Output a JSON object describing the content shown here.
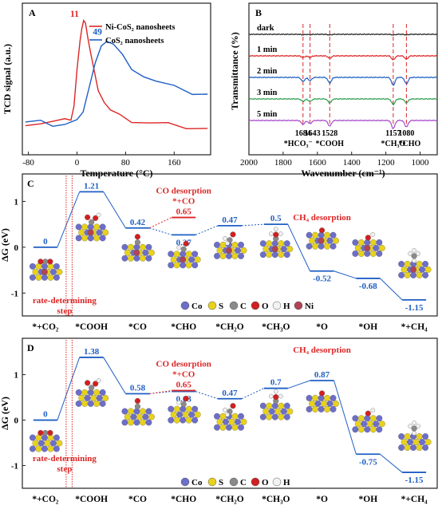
{
  "colors": {
    "red": "#dc2626",
    "blue": "#1f5fc4",
    "black": "#222222",
    "green": "#2e9e4f",
    "purple": "#a64ac9",
    "grey": "#7f7f7f",
    "co": "#6d6ec9",
    "s": "#e8d21a",
    "c": "#8a8a8a",
    "o": "#d21f1f",
    "h": "#f2f2f2",
    "ni": "#b04455"
  },
  "chart_data": [
    {
      "panel": "A",
      "type": "line",
      "ylabel": "TCD signal (a.u.)",
      "xlabel": "Temperature (°C)",
      "xlim": [
        -90,
        220
      ],
      "xticks": [
        -80,
        0,
        80,
        160
      ],
      "ylim": [
        0,
        1
      ],
      "series": [
        {
          "name": "Ni-CoS₂ nanosheets",
          "color": "red",
          "peak_label": "11",
          "x": [
            -85,
            -60,
            -40,
            -20,
            -10,
            -5,
            0,
            5,
            8,
            11,
            14,
            18,
            22,
            28,
            35,
            45,
            55,
            70,
            90,
            120,
            150,
            180,
            215
          ],
          "y": [
            0.21,
            0.21,
            0.215,
            0.22,
            0.24,
            0.32,
            0.55,
            0.77,
            0.84,
            0.88,
            0.85,
            0.78,
            0.68,
            0.55,
            0.44,
            0.35,
            0.29,
            0.25,
            0.225,
            0.21,
            0.2,
            0.19,
            0.18
          ]
        },
        {
          "name": "CoS₂ nanosheets",
          "color": "blue",
          "peak_label": "49",
          "x": [
            -85,
            -60,
            -40,
            -20,
            0,
            10,
            20,
            30,
            40,
            49,
            60,
            75,
            90,
            110,
            130,
            160,
            190,
            215
          ],
          "y": [
            0.21,
            0.21,
            0.2,
            0.2,
            0.22,
            0.3,
            0.45,
            0.6,
            0.7,
            0.76,
            0.73,
            0.65,
            0.58,
            0.52,
            0.48,
            0.44,
            0.41,
            0.4
          ]
        }
      ]
    },
    {
      "panel": "B",
      "type": "line",
      "ylabel": "Transmittance (%)",
      "xlabel": "Wavenumber (cm⁻¹)",
      "xlim": [
        2000,
        900
      ],
      "xticks": [
        2000,
        1800,
        1600,
        1400,
        1200,
        1000
      ],
      "series_labels": [
        "dark",
        "1 min",
        "2 min",
        "3 min",
        "5 min"
      ],
      "series_colors": [
        "black",
        "red",
        "blue",
        "green",
        "purple"
      ],
      "peak_positions": [
        1684,
        1643,
        1528,
        1157,
        1080
      ],
      "peak_labels": [
        "1684",
        "1643",
        "1528",
        "1157",
        "1080"
      ],
      "peak_assign": [
        "*HCO₃⁻",
        "*COOH",
        "*CH₃O",
        "*CHO"
      ]
    },
    {
      "panel": "C",
      "type": "line",
      "ylabel": "ΔG (eV)",
      "ylim": [
        -1.5,
        1.6
      ],
      "yticks": [
        -1,
        0,
        1
      ],
      "categories": [
        "*+CO₂",
        "*COOH",
        "*CO",
        "*CHO",
        "*CH₂O",
        "*CH₃O",
        "*O",
        "*OH",
        "*+CH₄"
      ],
      "values": [
        0,
        1.21,
        0.42,
        0.27,
        0.47,
        0.5,
        -0.52,
        -0.68,
        -1.15
      ],
      "value_labels": [
        "0",
        "1.21",
        "0.42",
        "0.27",
        "0.47",
        "0.5",
        "-0.52",
        "-0.68",
        "-1.15"
      ],
      "co_desorption_value": 0.65,
      "co_desorption_label": "0.65",
      "annotations": {
        "co_desorption": "CO desorption",
        "co_plus": "*+CO",
        "ch4_desorption": "CH₄ desorption",
        "rds_line1": "rate-determining",
        "rds_line2": "step"
      },
      "legend": [
        "Co",
        "S",
        "C",
        "O",
        "H",
        "Ni"
      ]
    },
    {
      "panel": "D",
      "type": "line",
      "ylabel": "ΔG (eV)",
      "ylim": [
        -1.5,
        1.8
      ],
      "yticks": [
        -1,
        0,
        1
      ],
      "categories": [
        "*+CO₂",
        "*COOH",
        "*CO",
        "*CHO",
        "*CH₂O",
        "*CH₃O",
        "*O",
        "*OH",
        "*+CH₄"
      ],
      "values": [
        0,
        1.38,
        0.58,
        0.63,
        0.47,
        0.7,
        0.87,
        -0.75,
        -1.15
      ],
      "value_labels": [
        "0",
        "1.38",
        "0.58",
        "0.63",
        "0.47",
        "0.7",
        "0.87",
        "-0.75",
        "-1.15"
      ],
      "co_desorption_value": 0.65,
      "co_desorption_label": "0.65",
      "annotations": {
        "co_desorption": "CO desorption",
        "co_plus": "*+CO",
        "ch4_desorption": "CH₄ desorption",
        "rds_line1": "rate-determining",
        "rds_line2": "step"
      },
      "legend": [
        "Co",
        "S",
        "C",
        "O",
        "H"
      ]
    }
  ]
}
